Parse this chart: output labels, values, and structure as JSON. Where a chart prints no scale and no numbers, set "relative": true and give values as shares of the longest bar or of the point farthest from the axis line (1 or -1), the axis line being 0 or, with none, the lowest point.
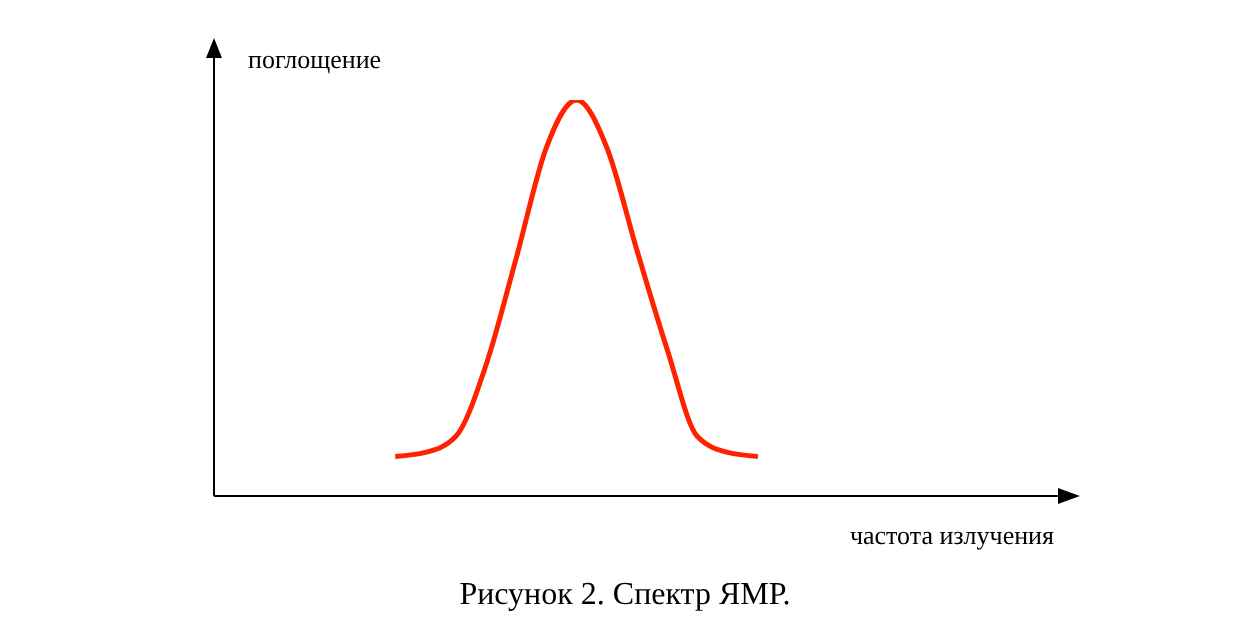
{
  "chart_data": {
    "type": "line",
    "relative": true,
    "ylabel": "поглощение",
    "xlabel": "частота излучения",
    "annotations": [
      "Рисунок 2. Спектр ЯМР."
    ],
    "categories": [
      null,
      null,
      null,
      null,
      null,
      null,
      null,
      null,
      null,
      null,
      null,
      null,
      null,
      null,
      null,
      null,
      null,
      null,
      null,
      null,
      null,
      null,
      null,
      null,
      null,
      null,
      null,
      null,
      null
    ],
    "series": [
      {
        "color": "#ff2200",
        "values": [
          null,
          null,
          null,
          null,
          null,
          null,
          0.1,
          0.11,
          0.15,
          0.33,
          0.6,
          0.88,
          1.0,
          0.88,
          0.62,
          0.37,
          0.15,
          0.11,
          0.1,
          null,
          null,
          null,
          null,
          null,
          null,
          null,
          null,
          null,
          null
        ]
      }
    ],
    "marker": "none",
    "line_style": "solid",
    "grid": false
  }
}
